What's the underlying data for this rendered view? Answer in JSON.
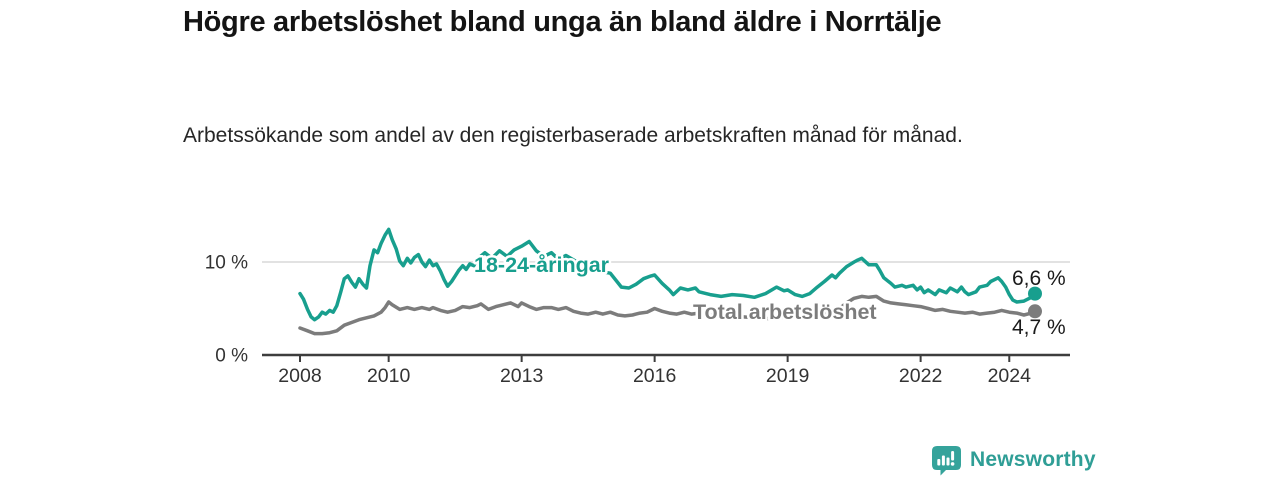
{
  "header": {
    "title": "Högre arbetslöshet bland unga än bland äldre i Norrtälje",
    "subtitle": "Arbetssökande som andel av den registerbaserade arbetskraften månad för månad."
  },
  "chart_data": {
    "type": "line",
    "unit": "%",
    "grid": "horizontal line at 10% only",
    "legend": "inline labels on lines",
    "x_range": [
      2008,
      2024.75
    ],
    "ylim": [
      0,
      14.5
    ],
    "x_ticks": [
      "2008",
      "2010",
      "2013",
      "2016",
      "2019",
      "2022",
      "2024"
    ],
    "x_tick_years": [
      2008,
      2010,
      2013,
      2016,
      2019,
      2022,
      2024
    ],
    "y_ticks": [
      {
        "value": 0,
        "label": "0 %"
      },
      {
        "value": 10,
        "label": "10 %"
      }
    ],
    "series": [
      {
        "name": "18-24-åringar",
        "color": "#189f8e",
        "end_value": 6.6,
        "end_label": "6,6 %",
        "points": [
          [
            2008.0,
            6.6
          ],
          [
            2008.08,
            6.0
          ],
          [
            2008.17,
            4.9
          ],
          [
            2008.25,
            4.1
          ],
          [
            2008.33,
            3.8
          ],
          [
            2008.42,
            4.1
          ],
          [
            2008.5,
            4.6
          ],
          [
            2008.58,
            4.4
          ],
          [
            2008.67,
            4.8
          ],
          [
            2008.75,
            4.6
          ],
          [
            2008.83,
            5.3
          ],
          [
            2008.92,
            6.8
          ],
          [
            2009.0,
            8.2
          ],
          [
            2009.08,
            8.5
          ],
          [
            2009.17,
            7.8
          ],
          [
            2009.25,
            7.3
          ],
          [
            2009.33,
            8.2
          ],
          [
            2009.42,
            7.6
          ],
          [
            2009.5,
            7.2
          ],
          [
            2009.58,
            9.6
          ],
          [
            2009.67,
            11.3
          ],
          [
            2009.75,
            11.0
          ],
          [
            2009.83,
            12.0
          ],
          [
            2009.92,
            12.9
          ],
          [
            2010.0,
            13.5
          ],
          [
            2010.08,
            12.4
          ],
          [
            2010.17,
            11.4
          ],
          [
            2010.25,
            10.1
          ],
          [
            2010.33,
            9.6
          ],
          [
            2010.42,
            10.4
          ],
          [
            2010.5,
            9.9
          ],
          [
            2010.58,
            10.5
          ],
          [
            2010.67,
            10.8
          ],
          [
            2010.75,
            10.0
          ],
          [
            2010.83,
            9.5
          ],
          [
            2010.92,
            10.2
          ],
          [
            2011.0,
            9.6
          ],
          [
            2011.08,
            9.8
          ],
          [
            2011.17,
            9.0
          ],
          [
            2011.25,
            8.1
          ],
          [
            2011.33,
            7.4
          ],
          [
            2011.42,
            7.9
          ],
          [
            2011.5,
            8.5
          ],
          [
            2011.58,
            9.1
          ],
          [
            2011.67,
            9.6
          ],
          [
            2011.75,
            9.2
          ],
          [
            2011.83,
            9.8
          ],
          [
            2011.92,
            9.6
          ],
          [
            2012.0,
            10.3
          ],
          [
            2012.17,
            11.0
          ],
          [
            2012.33,
            10.4
          ],
          [
            2012.5,
            11.2
          ],
          [
            2012.67,
            10.6
          ],
          [
            2012.83,
            11.3
          ],
          [
            2013.0,
            11.7
          ],
          [
            2013.17,
            12.2
          ],
          [
            2013.33,
            11.2
          ],
          [
            2013.5,
            10.6
          ],
          [
            2013.67,
            11.0
          ],
          [
            2013.83,
            10.3
          ],
          [
            2014.0,
            10.7
          ],
          [
            2014.25,
            10.0
          ],
          [
            2014.5,
            9.4
          ],
          [
            2014.75,
            9.0
          ],
          [
            2015.0,
            8.8
          ],
          [
            2015.25,
            7.3
          ],
          [
            2015.42,
            7.2
          ],
          [
            2015.58,
            7.6
          ],
          [
            2015.75,
            8.2
          ],
          [
            2015.92,
            8.5
          ],
          [
            2016.0,
            8.6
          ],
          [
            2016.17,
            7.7
          ],
          [
            2016.33,
            7.0
          ],
          [
            2016.42,
            6.5
          ],
          [
            2016.58,
            7.2
          ],
          [
            2016.75,
            7.0
          ],
          [
            2016.92,
            7.2
          ],
          [
            2017.0,
            6.8
          ],
          [
            2017.25,
            6.5
          ],
          [
            2017.5,
            6.3
          ],
          [
            2017.75,
            6.5
          ],
          [
            2018.0,
            6.4
          ],
          [
            2018.25,
            6.2
          ],
          [
            2018.5,
            6.6
          ],
          [
            2018.75,
            7.3
          ],
          [
            2018.92,
            6.9
          ],
          [
            2019.0,
            7.0
          ],
          [
            2019.17,
            6.5
          ],
          [
            2019.33,
            6.3
          ],
          [
            2019.5,
            6.6
          ],
          [
            2019.67,
            7.3
          ],
          [
            2019.83,
            7.9
          ],
          [
            2020.0,
            8.6
          ],
          [
            2020.08,
            8.3
          ],
          [
            2020.17,
            8.8
          ],
          [
            2020.33,
            9.5
          ],
          [
            2020.5,
            10.0
          ],
          [
            2020.58,
            10.2
          ],
          [
            2020.67,
            10.4
          ],
          [
            2020.83,
            9.7
          ],
          [
            2021.0,
            9.7
          ],
          [
            2021.08,
            9.1
          ],
          [
            2021.17,
            8.3
          ],
          [
            2021.33,
            7.7
          ],
          [
            2021.42,
            7.3
          ],
          [
            2021.58,
            7.5
          ],
          [
            2021.67,
            7.3
          ],
          [
            2021.83,
            7.5
          ],
          [
            2021.92,
            7.0
          ],
          [
            2022.0,
            7.3
          ],
          [
            2022.08,
            6.7
          ],
          [
            2022.17,
            7.0
          ],
          [
            2022.33,
            6.5
          ],
          [
            2022.42,
            7.0
          ],
          [
            2022.58,
            6.7
          ],
          [
            2022.67,
            7.2
          ],
          [
            2022.83,
            6.8
          ],
          [
            2022.92,
            7.3
          ],
          [
            2023.0,
            6.8
          ],
          [
            2023.08,
            6.5
          ],
          [
            2023.25,
            6.8
          ],
          [
            2023.33,
            7.3
          ],
          [
            2023.5,
            7.5
          ],
          [
            2023.58,
            7.9
          ],
          [
            2023.75,
            8.3
          ],
          [
            2023.83,
            7.9
          ],
          [
            2023.92,
            7.3
          ],
          [
            2024.0,
            6.5
          ],
          [
            2024.08,
            5.9
          ],
          [
            2024.17,
            5.7
          ],
          [
            2024.33,
            5.8
          ],
          [
            2024.5,
            6.2
          ],
          [
            2024.58,
            6.6
          ]
        ]
      },
      {
        "name": "Total arbetslöshet",
        "color": "#7c7c7c",
        "end_value": 4.7,
        "end_label": "4,7 %",
        "points": [
          [
            2008.0,
            2.9
          ],
          [
            2008.17,
            2.6
          ],
          [
            2008.33,
            2.3
          ],
          [
            2008.5,
            2.3
          ],
          [
            2008.67,
            2.4
          ],
          [
            2008.83,
            2.6
          ],
          [
            2009.0,
            3.2
          ],
          [
            2009.17,
            3.5
          ],
          [
            2009.33,
            3.8
          ],
          [
            2009.5,
            4.0
          ],
          [
            2009.67,
            4.2
          ],
          [
            2009.83,
            4.6
          ],
          [
            2009.92,
            5.1
          ],
          [
            2010.0,
            5.7
          ],
          [
            2010.08,
            5.4
          ],
          [
            2010.25,
            4.9
          ],
          [
            2010.42,
            5.1
          ],
          [
            2010.58,
            4.9
          ],
          [
            2010.75,
            5.1
          ],
          [
            2010.92,
            4.9
          ],
          [
            2011.0,
            5.1
          ],
          [
            2011.17,
            4.8
          ],
          [
            2011.33,
            4.6
          ],
          [
            2011.5,
            4.8
          ],
          [
            2011.67,
            5.2
          ],
          [
            2011.83,
            5.1
          ],
          [
            2012.0,
            5.3
          ],
          [
            2012.08,
            5.5
          ],
          [
            2012.25,
            4.9
          ],
          [
            2012.42,
            5.2
          ],
          [
            2012.58,
            5.4
          ],
          [
            2012.75,
            5.6
          ],
          [
            2012.92,
            5.2
          ],
          [
            2013.0,
            5.6
          ],
          [
            2013.17,
            5.2
          ],
          [
            2013.33,
            4.9
          ],
          [
            2013.5,
            5.1
          ],
          [
            2013.67,
            5.1
          ],
          [
            2013.83,
            4.9
          ],
          [
            2014.0,
            5.1
          ],
          [
            2014.17,
            4.7
          ],
          [
            2014.33,
            4.5
          ],
          [
            2014.5,
            4.4
          ],
          [
            2014.67,
            4.6
          ],
          [
            2014.83,
            4.4
          ],
          [
            2015.0,
            4.6
          ],
          [
            2015.17,
            4.3
          ],
          [
            2015.33,
            4.2
          ],
          [
            2015.5,
            4.3
          ],
          [
            2015.67,
            4.5
          ],
          [
            2015.83,
            4.6
          ],
          [
            2016.0,
            5.0
          ],
          [
            2016.17,
            4.7
          ],
          [
            2016.33,
            4.5
          ],
          [
            2016.5,
            4.4
          ],
          [
            2016.67,
            4.6
          ],
          [
            2016.83,
            4.4
          ],
          [
            2017.0,
            4.5
          ],
          [
            2017.25,
            4.3
          ],
          [
            2017.5,
            4.2
          ],
          [
            2017.75,
            4.2
          ],
          [
            2018.0,
            4.1
          ],
          [
            2018.25,
            4.0
          ],
          [
            2018.5,
            3.9
          ],
          [
            2018.75,
            4.0
          ],
          [
            2019.0,
            4.1
          ],
          [
            2019.25,
            4.0
          ],
          [
            2019.5,
            4.1
          ],
          [
            2019.75,
            4.4
          ],
          [
            2020.0,
            4.7
          ],
          [
            2020.17,
            5.0
          ],
          [
            2020.33,
            5.6
          ],
          [
            2020.5,
            6.1
          ],
          [
            2020.67,
            6.3
          ],
          [
            2020.83,
            6.2
          ],
          [
            2021.0,
            6.3
          ],
          [
            2021.17,
            5.8
          ],
          [
            2021.33,
            5.6
          ],
          [
            2021.5,
            5.5
          ],
          [
            2021.67,
            5.4
          ],
          [
            2021.83,
            5.3
          ],
          [
            2022.0,
            5.2
          ],
          [
            2022.17,
            5.0
          ],
          [
            2022.33,
            4.8
          ],
          [
            2022.5,
            4.9
          ],
          [
            2022.67,
            4.7
          ],
          [
            2022.83,
            4.6
          ],
          [
            2023.0,
            4.5
          ],
          [
            2023.17,
            4.6
          ],
          [
            2023.33,
            4.4
          ],
          [
            2023.5,
            4.5
          ],
          [
            2023.67,
            4.6
          ],
          [
            2023.83,
            4.8
          ],
          [
            2024.0,
            4.6
          ],
          [
            2024.17,
            4.5
          ],
          [
            2024.33,
            4.3
          ],
          [
            2024.5,
            4.5
          ],
          [
            2024.58,
            4.7
          ]
        ]
      }
    ],
    "colors": {
      "grid": "#d8d8d8",
      "axis": "#3d3d3d",
      "tick_text": "#333333",
      "end_label_text": "#1a1a1a"
    }
  },
  "footer": {
    "brand": "Newsworthy",
    "brand_color": "#2f9e96",
    "logo_icon": "bar-chart-speech-bubble-icon"
  }
}
